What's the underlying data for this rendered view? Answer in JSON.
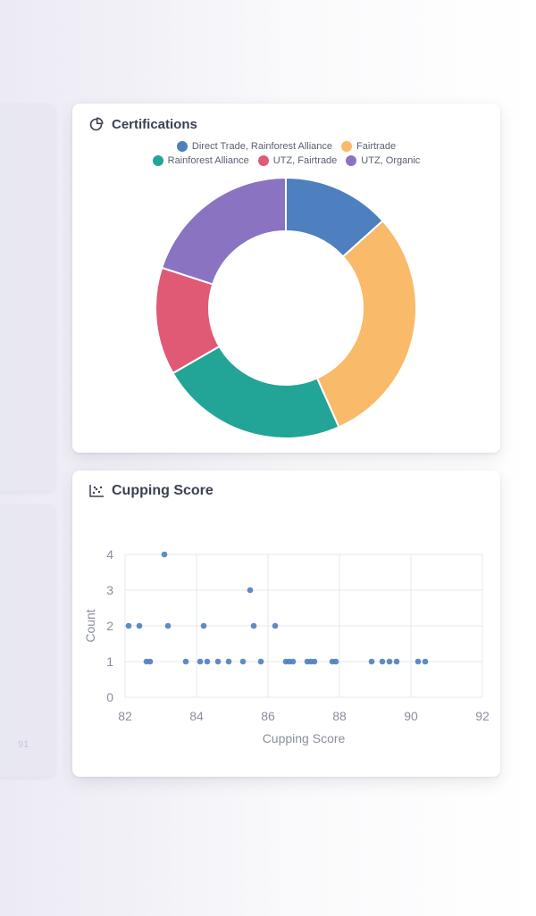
{
  "ghost": {
    "bottom_label": "91"
  },
  "certifications": {
    "title": "Certifications",
    "icon": "pie-chart-icon"
  },
  "cupping": {
    "title": "Cupping Score",
    "icon": "scatter-chart-icon"
  },
  "chart_data": [
    {
      "type": "pie",
      "variant": "donut",
      "title": "Certifications",
      "legend_position": "top",
      "categories": [
        "Direct Trade, Rainforest Alliance",
        "Fairtrade",
        "Rainforest Alliance",
        "UTZ, Fairtrade",
        "UTZ, Organic"
      ],
      "values": [
        4,
        9,
        7,
        4,
        6
      ],
      "colors": [
        "#4e7fbf",
        "#f9ba6a",
        "#22a596",
        "#e05a75",
        "#8a74c2"
      ],
      "legend_rows": [
        [
          0,
          1
        ],
        [
          2,
          3,
          4
        ]
      ]
    },
    {
      "type": "scatter",
      "title": "Cupping Score",
      "xlabel": "Cupping Score",
      "ylabel": "Count",
      "xlim": [
        82,
        92
      ],
      "ylim": [
        0,
        4
      ],
      "xticks": [
        82,
        84,
        86,
        88,
        90,
        92
      ],
      "yticks": [
        0,
        1,
        2,
        3,
        4
      ],
      "grid": true,
      "color": "#4e7fbf",
      "points": [
        [
          82.1,
          2
        ],
        [
          82.4,
          2
        ],
        [
          83.2,
          2
        ],
        [
          84.2,
          2
        ],
        [
          85.6,
          2
        ],
        [
          86.2,
          2
        ],
        [
          83.1,
          4
        ],
        [
          85.5,
          3
        ],
        [
          82.6,
          1
        ],
        [
          82.7,
          1
        ],
        [
          83.7,
          1
        ],
        [
          84.1,
          1
        ],
        [
          84.3,
          1
        ],
        [
          84.6,
          1
        ],
        [
          84.9,
          1
        ],
        [
          85.3,
          1
        ],
        [
          85.8,
          1
        ],
        [
          86.5,
          1
        ],
        [
          86.6,
          1
        ],
        [
          86.7,
          1
        ],
        [
          87.1,
          1
        ],
        [
          87.2,
          1
        ],
        [
          87.3,
          1
        ],
        [
          87.8,
          1
        ],
        [
          87.9,
          1
        ],
        [
          88.9,
          1
        ],
        [
          89.2,
          1
        ],
        [
          89.4,
          1
        ],
        [
          89.6,
          1
        ],
        [
          90.2,
          1
        ],
        [
          90.4,
          1
        ]
      ]
    }
  ]
}
